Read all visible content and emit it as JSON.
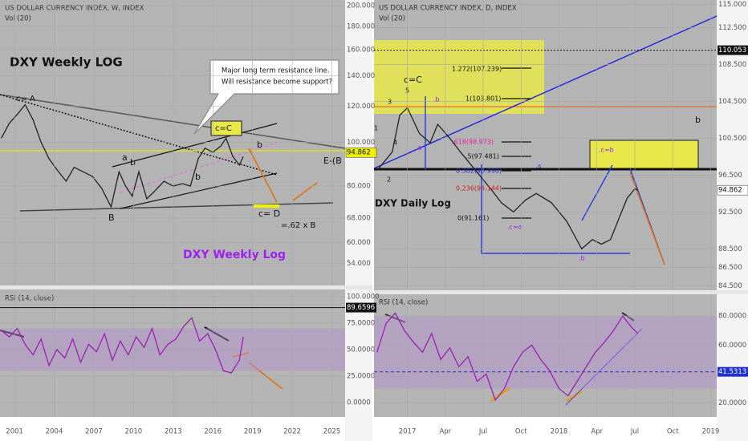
{
  "chart_data": [
    {
      "type": "line",
      "title": "US DOLLAR CURRENCY INDEX, W, INDEX",
      "subtitle": "Vol (20)",
      "log_scale": true,
      "color": "#222222",
      "xlim": [
        1999.9,
        2026
      ],
      "ylim": [
        48.5,
        205.8
      ],
      "yticks": [
        {
          "value": 200,
          "label": "200.000"
        },
        {
          "value": 180,
          "label": "180.000"
        },
        {
          "value": 160,
          "label": "160.000"
        },
        {
          "value": 140,
          "label": "140.000"
        },
        {
          "value": 120,
          "label": "120.000"
        },
        {
          "value": 100,
          "label": "100.000"
        },
        {
          "value": 80,
          "label": "80.000"
        },
        {
          "value": 68,
          "label": "68.000"
        },
        {
          "value": 60,
          "label": "60.000"
        },
        {
          "value": 54,
          "label": "54.000"
        }
      ],
      "last_value": 94.862,
      "x": [
        2000,
        2000.6,
        2001.3,
        2001.8,
        2002.4,
        2003,
        2003.6,
        2004.2,
        2004.9,
        2005.5,
        2006.2,
        2006.9,
        2007.6,
        2008.3,
        2008.9,
        2009.4,
        2009.9,
        2010.4,
        2011,
        2011.6,
        2012.3,
        2013,
        2013.7,
        2014.3,
        2014.9,
        2015.4,
        2016,
        2016.6,
        2017,
        2017.5,
        2018,
        2018.3
      ],
      "values": [
        102,
        110,
        116,
        121,
        112,
        100,
        92,
        87,
        82,
        88,
        86,
        84,
        79,
        72,
        86,
        80,
        76,
        86,
        75,
        78,
        82,
        80,
        81,
        80,
        92,
        97,
        95,
        98,
        102,
        93,
        89,
        93
      ],
      "annotations": [
        "DXY  Weekly LOG",
        "Major long term resistance line.",
        "Will resistance become support?",
        "c= A",
        "c=C",
        "a",
        "b",
        "b",
        "B",
        "b",
        "c= D",
        "=.62 x B",
        "E-(B",
        "DXY Weekly Log"
      ]
    },
    {
      "type": "line",
      "title": "RSI (14, close)",
      "color": "#9b1fb6",
      "xlim": [
        1999.9,
        2026
      ],
      "ylim": [
        -13.6,
        106
      ],
      "yticks": [
        {
          "value": 100,
          "label": "100.0000"
        },
        {
          "value": 75,
          "label": "75.0000"
        },
        {
          "value": 50,
          "label": "50.0000"
        },
        {
          "value": 25,
          "label": "25.0000"
        },
        {
          "value": 0,
          "label": "0.0000"
        }
      ],
      "band": [
        30,
        70
      ],
      "reference_line": 89.6596,
      "xticks": [
        2001,
        2004,
        2007,
        2010,
        2013,
        2016,
        2019,
        2022,
        2025
      ],
      "x": [
        2000,
        2000.6,
        2001.2,
        2001.8,
        2002.4,
        2003,
        2003.6,
        2004.2,
        2004.8,
        2005.4,
        2006,
        2006.6,
        2007.2,
        2007.8,
        2008.4,
        2009,
        2009.6,
        2010.2,
        2010.8,
        2011.4,
        2012,
        2012.6,
        2013.2,
        2013.8,
        2014.4,
        2015,
        2015.6,
        2016.2,
        2016.8,
        2017.4,
        2018,
        2018.3
      ],
      "values": [
        68,
        62,
        70,
        55,
        45,
        60,
        35,
        50,
        42,
        60,
        38,
        55,
        48,
        65,
        40,
        58,
        45,
        62,
        52,
        70,
        45,
        55,
        60,
        72,
        80,
        58,
        65,
        50,
        30,
        28,
        40,
        62
      ]
    },
    {
      "type": "line",
      "title": "US DOLLAR CURRENCY INDEX, D, INDEX",
      "subtitle": "Vol (20)",
      "color": "#222222",
      "xlim": [
        2016.78,
        2019.04
      ],
      "ylim": [
        84,
        115.5
      ],
      "yticks": [
        {
          "value": 115,
          "label": "115.000"
        },
        {
          "value": 112.5,
          "label": "112.500"
        },
        {
          "value": 108.5,
          "label": "108.500"
        },
        {
          "value": 104.5,
          "label": "104.500"
        },
        {
          "value": 100.5,
          "label": "100.500"
        },
        {
          "value": 96.5,
          "label": "96.500"
        },
        {
          "value": 92.5,
          "label": "92.500"
        },
        {
          "value": 88.5,
          "label": "88.500"
        },
        {
          "value": 86.5,
          "label": "86.500"
        },
        {
          "value": 84.5,
          "label": "84.500"
        }
      ],
      "last_value": 94.862,
      "marked_level": 110.053,
      "x": [
        2016.8,
        2016.9,
        2016.95,
        2017.0,
        2017.08,
        2017.15,
        2017.2,
        2017.28,
        2017.35,
        2017.45,
        2017.55,
        2017.62,
        2017.7,
        2017.78,
        2017.85,
        2017.95,
        2018.05,
        2018.1,
        2018.15,
        2018.22,
        2018.28,
        2018.34,
        2018.4,
        2018.45,
        2018.5,
        2018.52
      ],
      "values": [
        97,
        99,
        103,
        103.8,
        101,
        100,
        102,
        100.5,
        99,
        97,
        95,
        93.5,
        92.5,
        93.8,
        94.5,
        93.5,
        91.5,
        90,
        88.5,
        89.5,
        89,
        89.5,
        92,
        94,
        95,
        94.862
      ],
      "annotations": [
        "c=C",
        "3",
        "5",
        ".b",
        "1",
        "4",
        ".a",
        "2",
        "1.272(107.239)",
        "1(103.801)",
        ".618(98.973)",
        ".5(97.481)",
        "0.382(95.990)",
        "0.236(94.144)",
        "0(91.161)",
        ".c=a",
        ".a",
        ".b",
        ".c=b",
        "b",
        "DXY Daily Log"
      ]
    },
    {
      "type": "line",
      "title": "RSI (14, close)",
      "color": "#9b1fb6",
      "xlim": [
        2016.78,
        2019.04
      ],
      "ylim": [
        10.4,
        95
      ],
      "yticks": [
        {
          "value": 80,
          "label": "80.0000"
        },
        {
          "value": 60,
          "label": "60.0000"
        },
        {
          "value": 20,
          "label": "20.0000"
        }
      ],
      "band": [
        30,
        80
      ],
      "reference_line": 41.5313,
      "xticks": [
        2017,
        {
          "value": 2017.25,
          "label": "Apr"
        },
        {
          "value": 2017.5,
          "label": "Jul"
        },
        {
          "value": 2017.75,
          "label": "Oct"
        },
        2018,
        {
          "value": 2018.25,
          "label": "Apr"
        },
        {
          "value": 2018.5,
          "label": "Jul"
        },
        {
          "value": 2018.75,
          "label": "Oct"
        },
        2019
      ],
      "x": [
        2016.8,
        2016.86,
        2016.92,
        2016.98,
        2017.04,
        2017.1,
        2017.16,
        2017.22,
        2017.28,
        2017.34,
        2017.4,
        2017.46,
        2017.52,
        2017.58,
        2017.64,
        2017.7,
        2017.76,
        2017.82,
        2017.88,
        2017.94,
        2018.0,
        2018.06,
        2018.12,
        2018.18,
        2018.24,
        2018.3,
        2018.36,
        2018.42,
        2018.48,
        2018.52
      ],
      "values": [
        55,
        75,
        82,
        70,
        62,
        55,
        68,
        50,
        58,
        45,
        52,
        35,
        40,
        22,
        30,
        45,
        55,
        60,
        50,
        42,
        30,
        25,
        35,
        45,
        55,
        62,
        70,
        80,
        72,
        68
      ]
    }
  ]
}
